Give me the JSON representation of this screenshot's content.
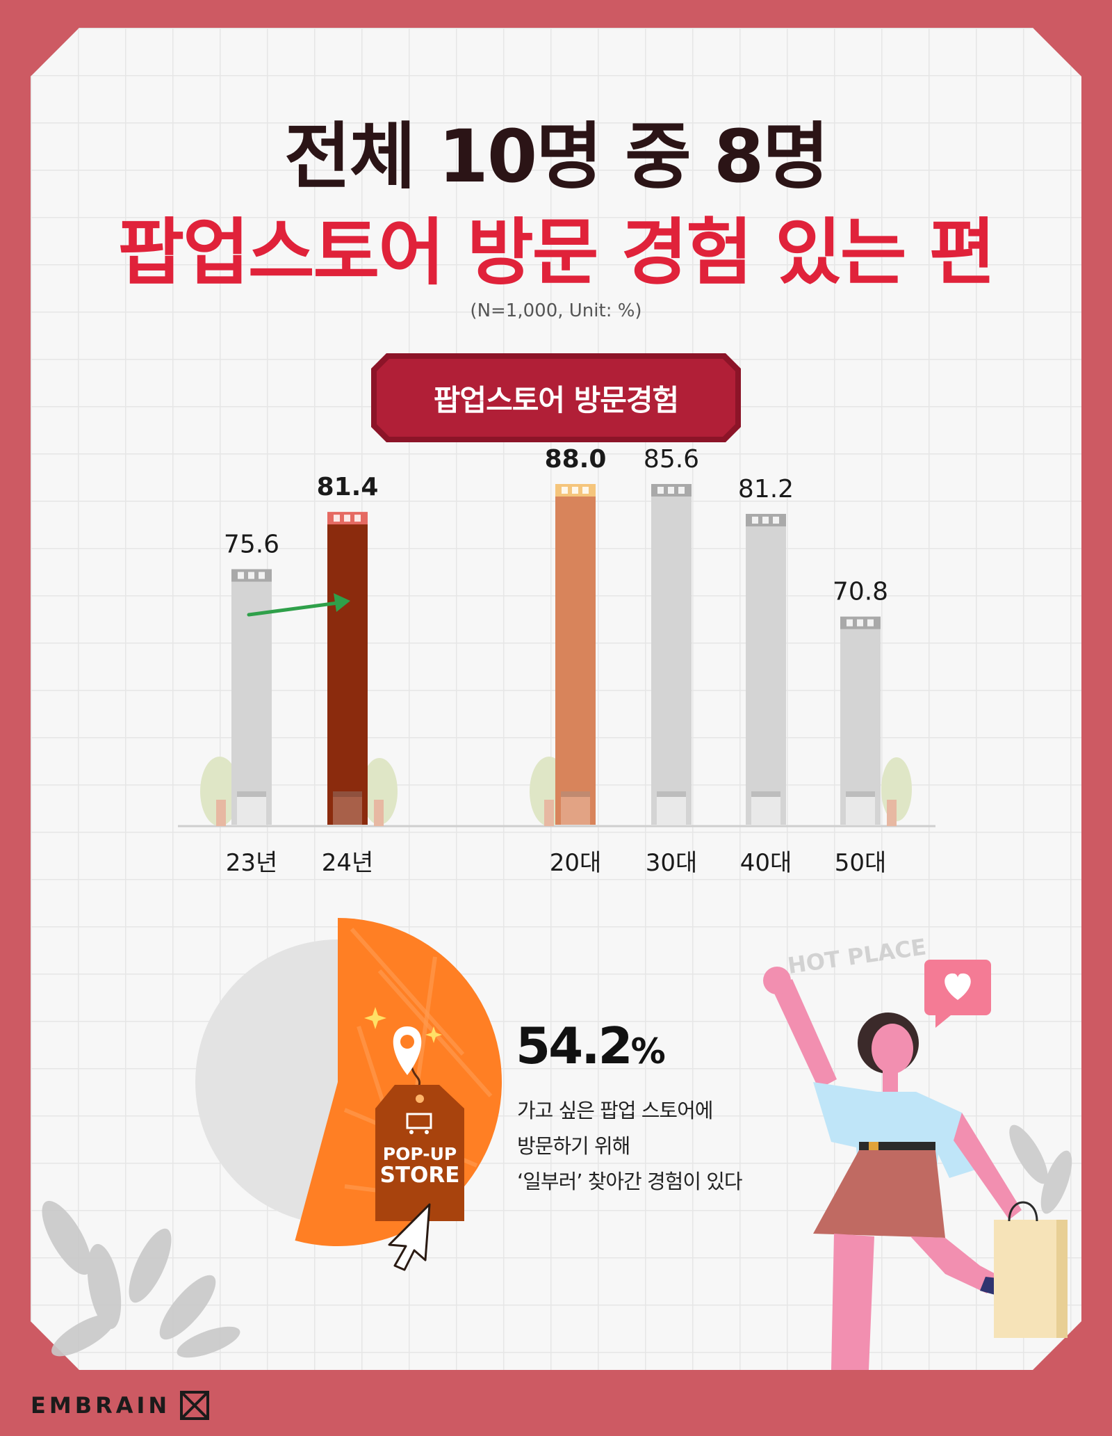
{
  "header": {
    "title_line1": "전체 10명 중 8명",
    "title_line2": "팝업스토어 방문 경험 있는 편",
    "sample_info": "(N=1,000, Unit:  %)",
    "badge": "팝업스토어 방문경험"
  },
  "chart_data": [
    {
      "type": "bar",
      "categories": [
        "23년",
        "24년"
      ],
      "values": [
        75.6,
        81.4
      ],
      "value_labels": [
        "75.6",
        "81.4"
      ],
      "highlight_index": 1,
      "colors": [
        "#d4d4d4",
        "#8b2b0d"
      ],
      "cap_colors": [
        "#a9a9a9",
        "#e56a62"
      ]
    },
    {
      "type": "bar",
      "categories": [
        "20대",
        "30대",
        "40대",
        "50대"
      ],
      "values": [
        88.0,
        85.6,
        81.2,
        70.8
      ],
      "value_labels": [
        "88.0",
        "85.6",
        "81.2",
        "70.8"
      ],
      "highlight_index": 0,
      "colors": [
        "#d8845b",
        "#d4d4d4",
        "#d4d4d4",
        "#d4d4d4"
      ],
      "cap_colors": [
        "#f5c57c",
        "#a9a9a9",
        "#a9a9a9",
        "#a9a9a9"
      ]
    },
    {
      "type": "pie",
      "values": [
        54.2,
        45.8
      ],
      "colors": [
        "#ff7f24",
        "#e3e3e3"
      ]
    }
  ],
  "highlight": {
    "percent": "54.2",
    "percent_sign": "%",
    "desc_lines": [
      "가고 싶은 팝업 스토어에",
      "방문하기 위해",
      "‘일부러’ 찾아간 경험이 있다"
    ]
  },
  "illustration": {
    "tag_line1": "POP-UP",
    "tag_line2": "STORE",
    "hot_place": "HOT PLACE",
    "icons": [
      "location-pin-icon",
      "cart-icon",
      "heart-icon",
      "cursor-icon"
    ]
  },
  "brand": {
    "logo": "EMBRAIN"
  },
  "colors": {
    "frame": "#cd5a63",
    "title_red": "#e0223a",
    "badge": "#b11f37"
  }
}
